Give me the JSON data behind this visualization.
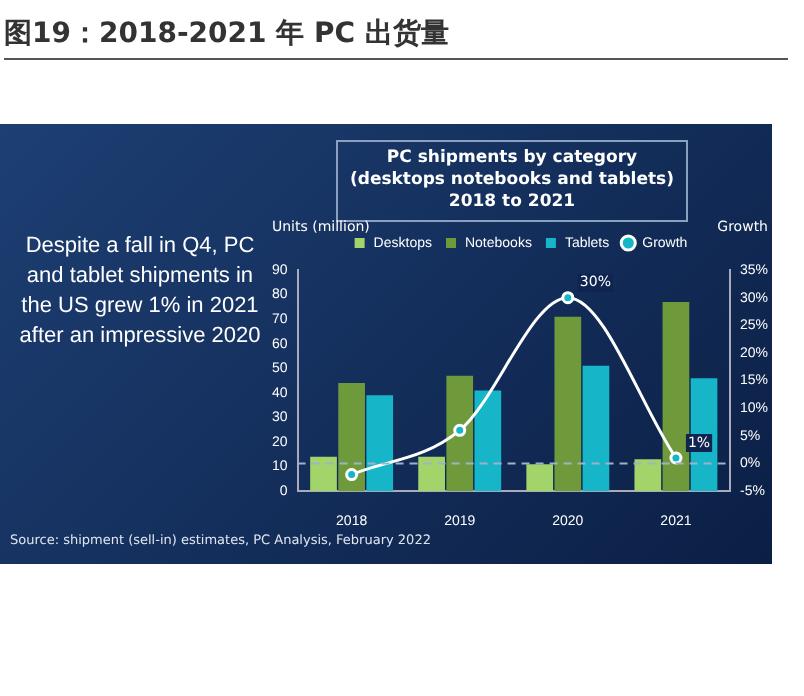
{
  "chart_data": {
    "type": "bar",
    "title": "图19：2018-2021 年 PC 出货量",
    "subtitle": "PC shipments by category (desktops notebooks and tablets) 2018 to 2021",
    "ylabel": "Units (million)",
    "y2label": "Growth",
    "categories": [
      "2018",
      "2019",
      "2020",
      "2021"
    ],
    "series": [
      {
        "name": "Desktops",
        "color": "#a3d46a",
        "values": [
          14,
          14,
          11,
          13
        ]
      },
      {
        "name": "Notebooks",
        "color": "#6e9a3c",
        "values": [
          44,
          47,
          71,
          77
        ]
      },
      {
        "name": "Tablets",
        "color": "#16b5c8",
        "values": [
          39,
          41,
          51,
          46
        ]
      },
      {
        "name": "Growth",
        "type": "line",
        "axis": "y2",
        "color": "#ffffff",
        "marker": "circle",
        "values": [
          -2,
          6,
          30,
          1
        ],
        "value_labels": [
          null,
          null,
          "30%",
          "1%"
        ]
      }
    ],
    "ylim": [
      0,
      90
    ],
    "yticks": [
      0,
      10,
      20,
      30,
      40,
      50,
      60,
      70,
      80,
      90
    ],
    "y2lim": [
      -5,
      35
    ],
    "y2ticks": [
      {
        "value": -5,
        "label": "-5%"
      },
      {
        "value": 0,
        "label": "0%"
      },
      {
        "value": 5,
        "label": "5%"
      },
      {
        "value": 10,
        "label": "10%"
      },
      {
        "value": 15,
        "label": "15%"
      },
      {
        "value": 20,
        "label": "20%"
      },
      {
        "value": 25,
        "label": "25%"
      },
      {
        "value": 30,
        "label": "30%"
      },
      {
        "value": 35,
        "label": "35%"
      }
    ],
    "ref_lines": [
      {
        "axis": "y2",
        "value": 0,
        "color": "#9fb3c8",
        "line_style": "dashed"
      }
    ],
    "legend": "top",
    "grid": false,
    "annotations": [
      "Despite a fall in Q4, PC and tablet shipments in the US grew 1% in 2021 after an impressive 2020",
      "Source: shipment (sell-in) estimates, PC Analysis, February 2022"
    ]
  }
}
